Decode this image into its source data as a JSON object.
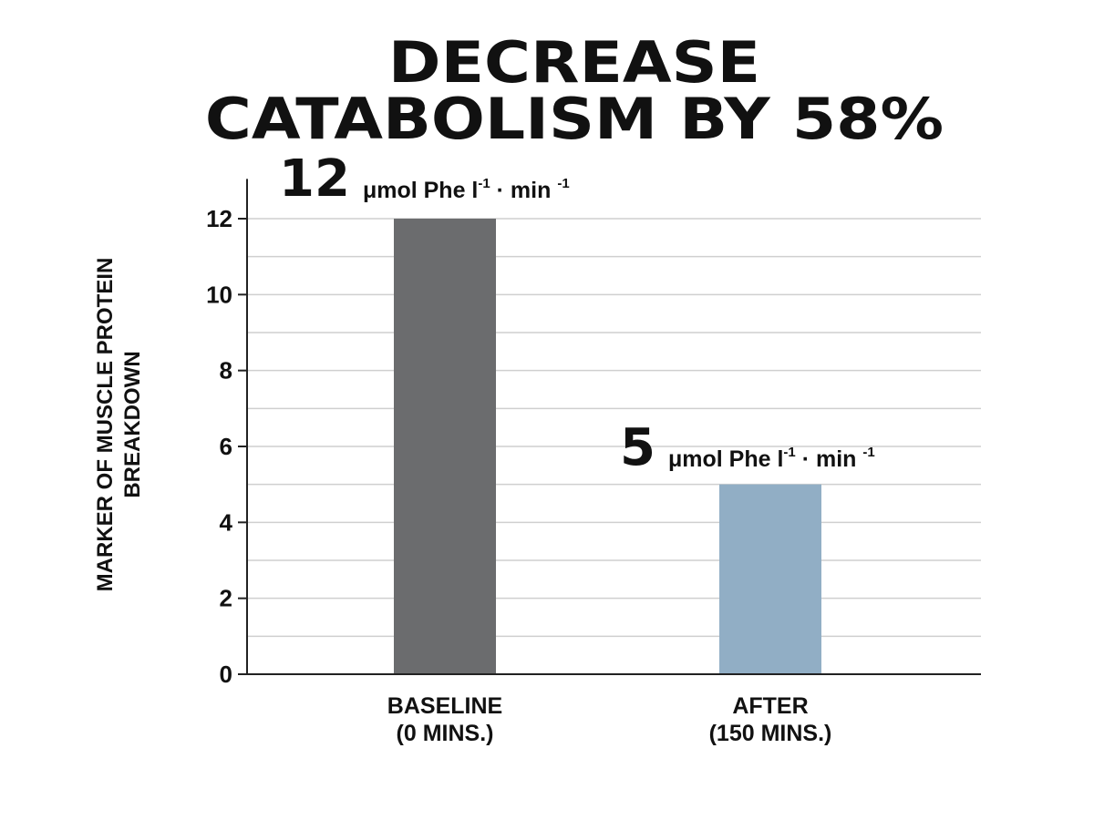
{
  "title": {
    "line1": "DECREASE",
    "line2": "CATABOLISM BY 58%"
  },
  "colors": {
    "baseline_bar": "#6b6c6e",
    "after_bar": "#91aec5",
    "gridline": "#cfcfcf",
    "axis": "#222222",
    "text": "#111111"
  },
  "chart_data": {
    "type": "bar",
    "categories": [
      [
        "BASELINE",
        "(0 MINS.)"
      ],
      [
        "AFTER",
        "(150 MINS.)"
      ]
    ],
    "values": [
      12,
      5
    ],
    "value_labels": [
      {
        "number": "12",
        "unit_a": "μmol Phe l",
        "sup_a": "-1",
        "unit_b": " · min ",
        "sup_b": "-1"
      },
      {
        "number": "5",
        "unit_a": "μmol Phe l",
        "sup_a": "-1",
        "unit_b": " · min ",
        "sup_b": "-1"
      }
    ],
    "ylabel_lines": [
      "MARKER OF MUSCLE PROTEIN",
      "BREAKDOWN"
    ],
    "ylim": [
      0,
      13
    ],
    "yticks": [
      0,
      2,
      4,
      6,
      8,
      10,
      12
    ],
    "minor_grid_step": 1,
    "grid": true
  }
}
